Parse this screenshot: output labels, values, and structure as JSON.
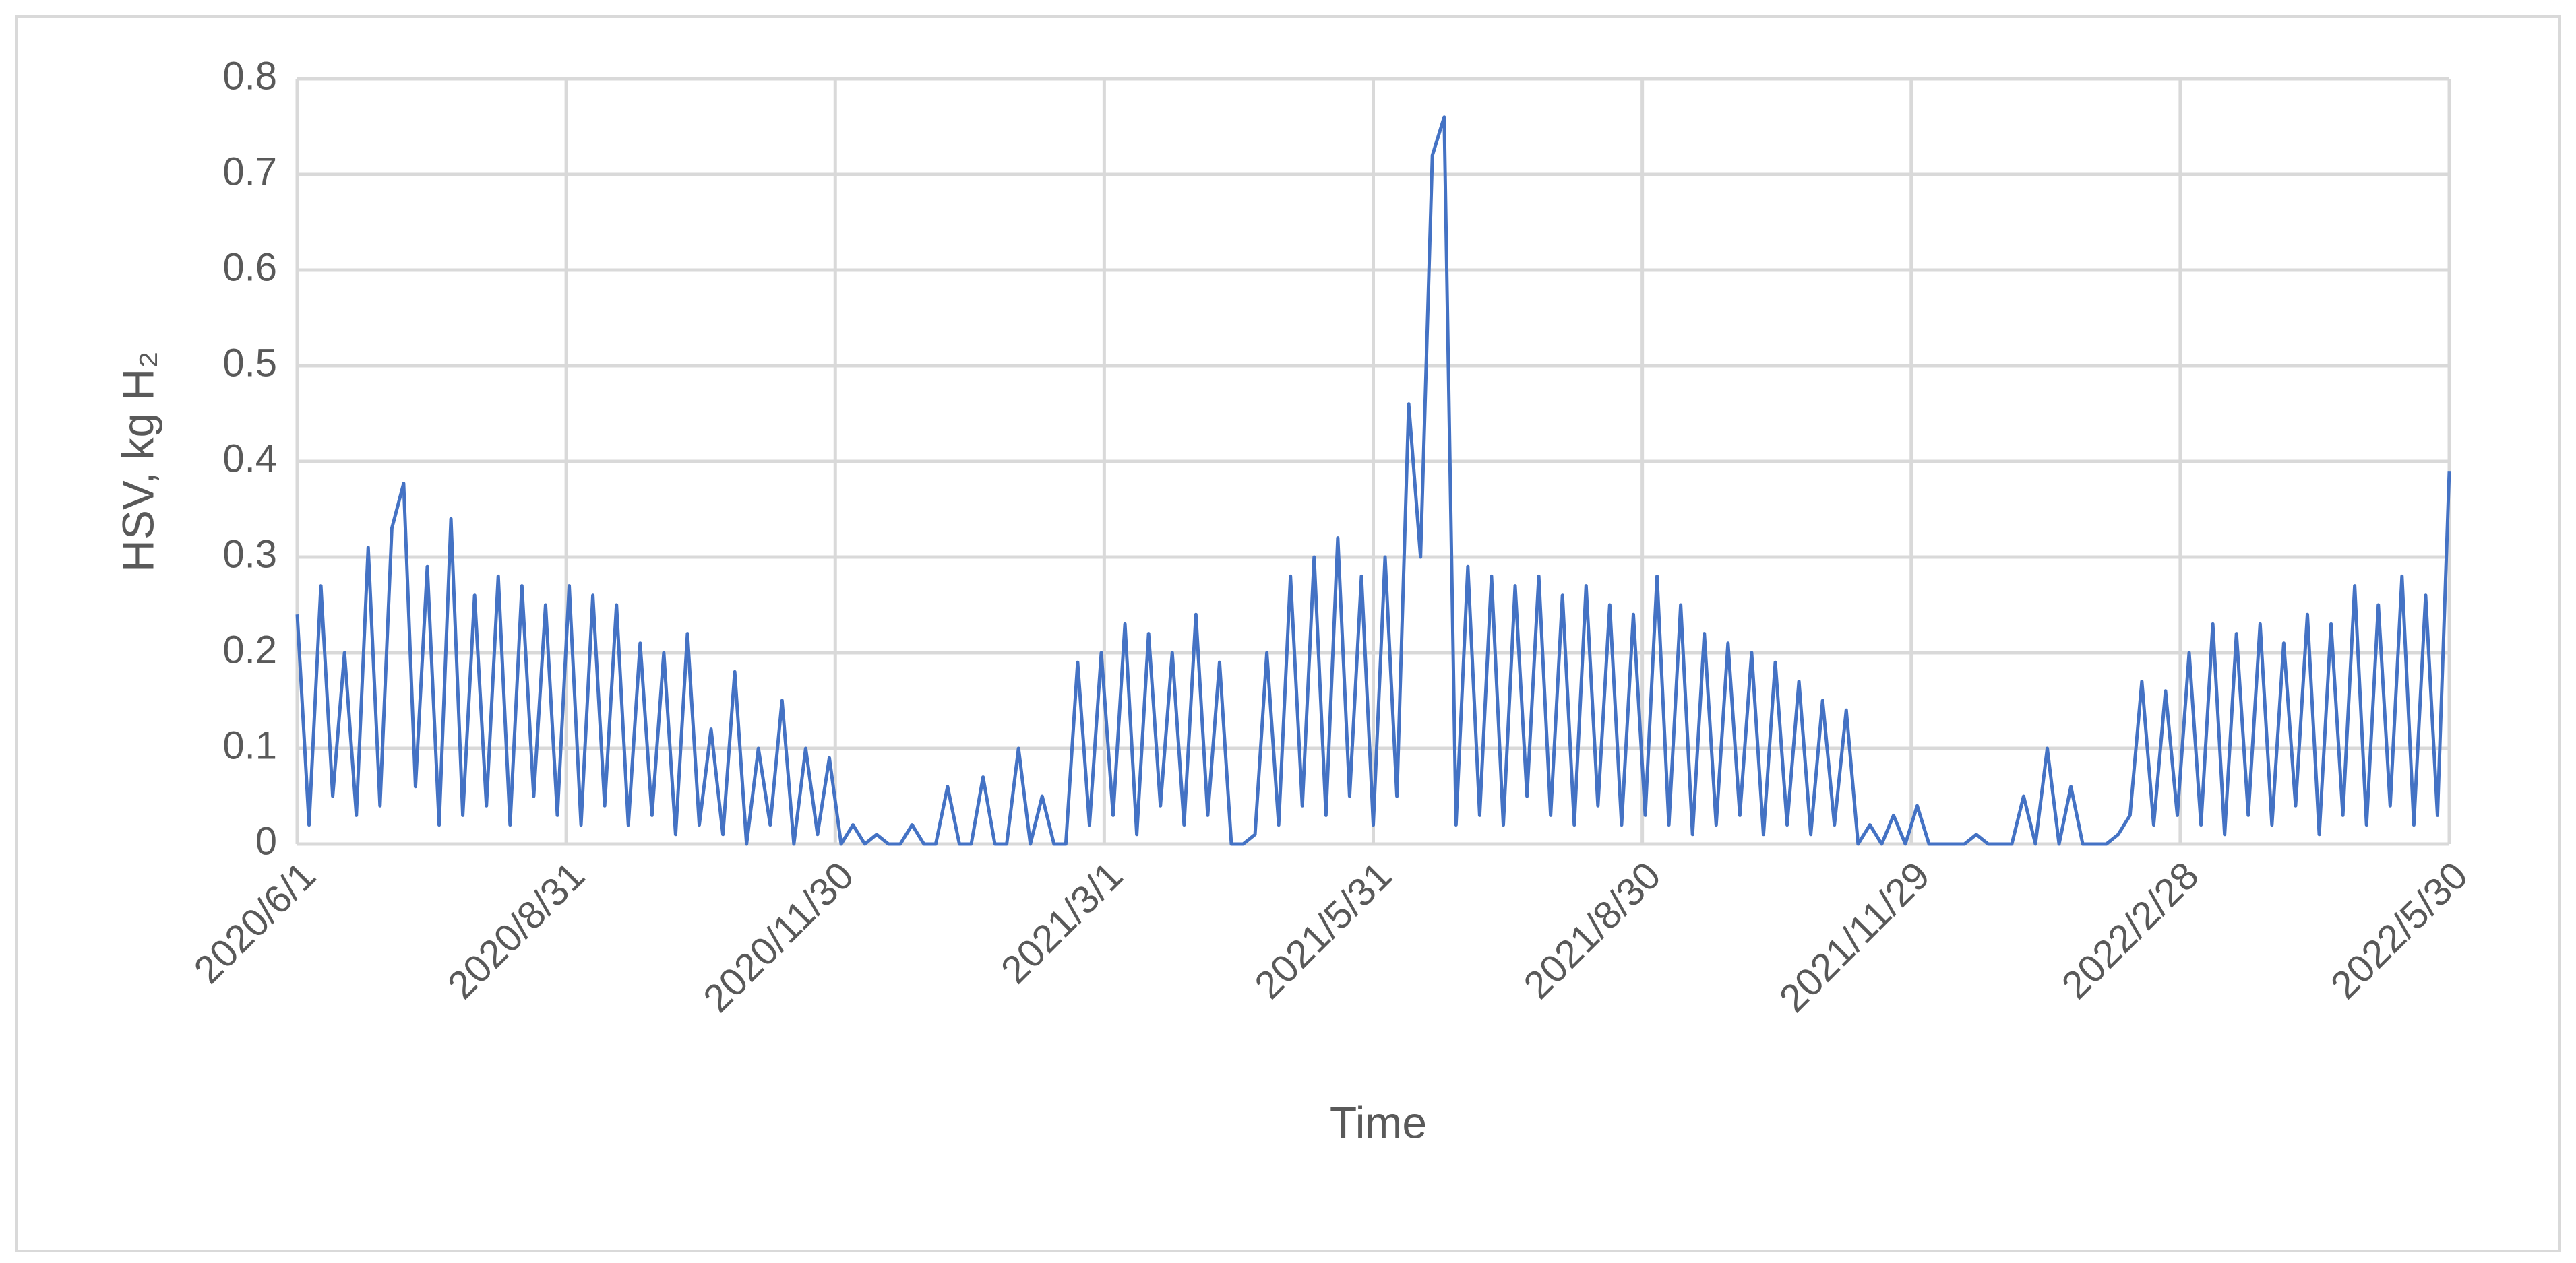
{
  "chart_data": {
    "type": "line",
    "x_label": "Time",
    "y_label": "HSV, kg H₂",
    "xlim": [
      0,
      728
    ],
    "xticks": [
      {
        "value": 0,
        "label": "2020/6/1"
      },
      {
        "value": 91,
        "label": "2020/8/31"
      },
      {
        "value": 182,
        "label": "2020/11/30"
      },
      {
        "value": 273,
        "label": "2021/3/1"
      },
      {
        "value": 364,
        "label": "2021/5/31"
      },
      {
        "value": 455,
        "label": "2021/8/30"
      },
      {
        "value": 546,
        "label": "2021/11/29"
      },
      {
        "value": 637,
        "label": "2022/2/28"
      },
      {
        "value": 728,
        "label": "2022/5/30"
      }
    ],
    "ylim": [
      0,
      0.8
    ],
    "yticks": [
      0,
      0.1,
      0.2,
      0.3,
      0.4,
      0.5,
      0.6,
      0.7,
      0.8
    ],
    "grid": true,
    "x": [
      0,
      4,
      8,
      12,
      16,
      20,
      24,
      28,
      32,
      36,
      40,
      44,
      48,
      52,
      56,
      60,
      64,
      68,
      72,
      76,
      80,
      84,
      88,
      92,
      96,
      100,
      104,
      108,
      112,
      116,
      120,
      124,
      128,
      132,
      136,
      140,
      144,
      148,
      152,
      156,
      160,
      164,
      168,
      172,
      176,
      180,
      184,
      188,
      192,
      196,
      200,
      204,
      208,
      212,
      216,
      220,
      224,
      228,
      232,
      236,
      240,
      244,
      248,
      252,
      256,
      260,
      264,
      268,
      272,
      276,
      280,
      284,
      288,
      292,
      296,
      300,
      304,
      308,
      312,
      316,
      320,
      324,
      328,
      332,
      336,
      340,
      344,
      348,
      352,
      356,
      360,
      364,
      368,
      372,
      376,
      380,
      384,
      388,
      392,
      396,
      400,
      404,
      408,
      412,
      416,
      420,
      424,
      428,
      432,
      436,
      440,
      444,
      448,
      452,
      456,
      460,
      464,
      468,
      472,
      476,
      480,
      484,
      488,
      492,
      496,
      500,
      504,
      508,
      512,
      516,
      520,
      524,
      528,
      532,
      536,
      540,
      544,
      548,
      552,
      556,
      560,
      564,
      568,
      572,
      576,
      580,
      584,
      588,
      592,
      596,
      600,
      604,
      608,
      612,
      616,
      620,
      624,
      628,
      632,
      636,
      640,
      644,
      648,
      652,
      656,
      660,
      664,
      668,
      672,
      676,
      680,
      684,
      688,
      692,
      696,
      700,
      704,
      708,
      712,
      716,
      720,
      724,
      728
    ],
    "series": [
      {
        "color": "#4472c4",
        "values": [
          0.24,
          0.02,
          0.27,
          0.05,
          0.2,
          0.03,
          0.31,
          0.04,
          0.33,
          0.377,
          0.06,
          0.29,
          0.02,
          0.34,
          0.03,
          0.26,
          0.04,
          0.28,
          0.02,
          0.27,
          0.05,
          0.25,
          0.03,
          0.27,
          0.02,
          0.26,
          0.04,
          0.25,
          0.02,
          0.21,
          0.03,
          0.2,
          0.01,
          0.22,
          0.02,
          0.12,
          0.01,
          0.18,
          0.0,
          0.1,
          0.02,
          0.15,
          0.0,
          0.1,
          0.01,
          0.09,
          0.0,
          0.02,
          0.0,
          0.01,
          0.0,
          0.0,
          0.02,
          0.0,
          0.0,
          0.06,
          0.0,
          0.0,
          0.07,
          0.0,
          0.0,
          0.1,
          0.0,
          0.05,
          0.0,
          0.0,
          0.19,
          0.02,
          0.2,
          0.03,
          0.23,
          0.01,
          0.22,
          0.04,
          0.2,
          0.02,
          0.24,
          0.03,
          0.19,
          0.0,
          0.0,
          0.01,
          0.2,
          0.02,
          0.28,
          0.04,
          0.3,
          0.03,
          0.32,
          0.05,
          0.28,
          0.02,
          0.3,
          0.05,
          0.46,
          0.3,
          0.72,
          0.76,
          0.02,
          0.29,
          0.03,
          0.28,
          0.02,
          0.27,
          0.05,
          0.28,
          0.03,
          0.26,
          0.02,
          0.27,
          0.04,
          0.25,
          0.02,
          0.24,
          0.03,
          0.28,
          0.02,
          0.25,
          0.01,
          0.22,
          0.02,
          0.21,
          0.03,
          0.2,
          0.01,
          0.19,
          0.02,
          0.17,
          0.01,
          0.15,
          0.02,
          0.14,
          0.0,
          0.02,
          0.0,
          0.03,
          0.0,
          0.04,
          0.0,
          0.0,
          0.0,
          0.0,
          0.01,
          0.0,
          0.0,
          0.0,
          0.05,
          0.0,
          0.1,
          0.0,
          0.06,
          0.0,
          0.0,
          0.0,
          0.01,
          0.03,
          0.17,
          0.02,
          0.16,
          0.03,
          0.2,
          0.02,
          0.23,
          0.01,
          0.22,
          0.03,
          0.23,
          0.02,
          0.21,
          0.04,
          0.24,
          0.01,
          0.23,
          0.03,
          0.27,
          0.02,
          0.25,
          0.04,
          0.28,
          0.02,
          0.26,
          0.03,
          0.39
        ]
      }
    ]
  }
}
